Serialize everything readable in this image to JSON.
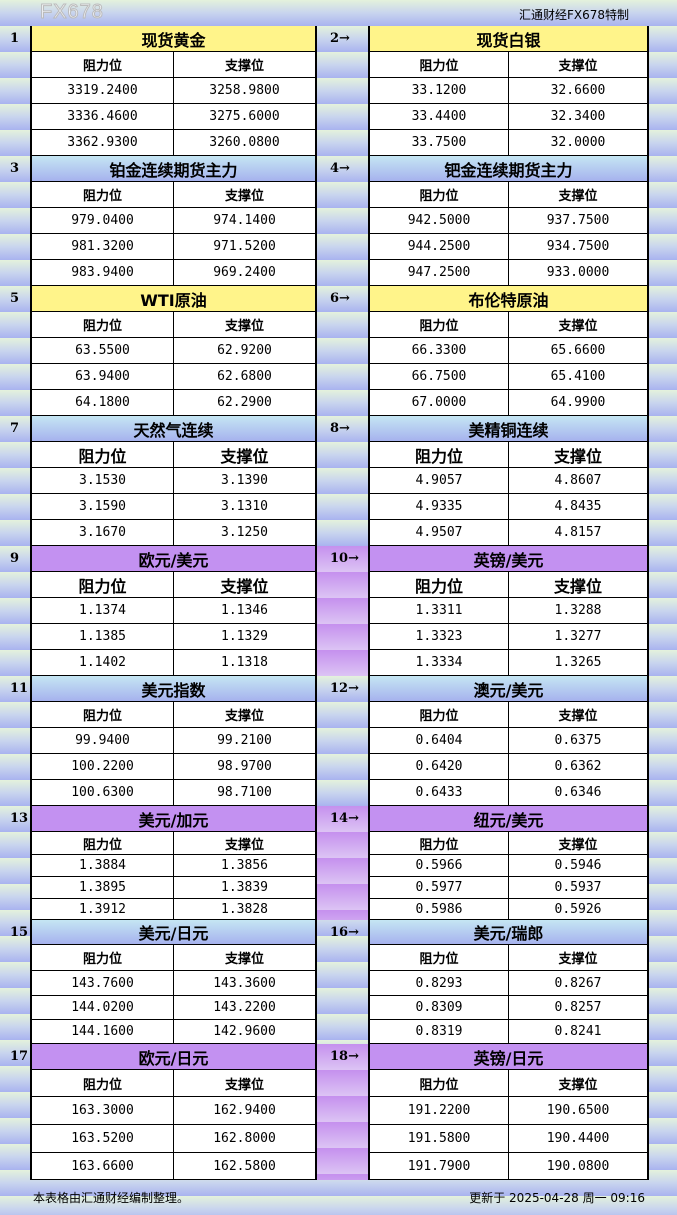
{
  "brand": "汇通财经FX678特制",
  "column_headers": {
    "resistance": "阻力位",
    "support": "支撑位"
  },
  "theme_colors": {
    "yellow": "#fff48a",
    "blue": "#b5cdf0",
    "purple": "#c391f1"
  },
  "sections": [
    {
      "number": "1",
      "theme": "yellow",
      "title": "现货黄金",
      "resistance": [
        "3319.2400",
        "3336.4600",
        "3362.9300"
      ],
      "support": [
        "3258.9800",
        "3275.6000",
        "3260.0800"
      ]
    },
    {
      "number": "2→",
      "theme": "yellow",
      "title": "现货白银",
      "resistance": [
        "33.1200",
        "33.4400",
        "33.7500"
      ],
      "support": [
        "32.6600",
        "32.3400",
        "32.0000"
      ]
    },
    {
      "number": "3",
      "theme": "blue",
      "title": "铂金连续期货主力",
      "resistance": [
        "979.0400",
        "981.3200",
        "983.9400"
      ],
      "support": [
        "974.1400",
        "971.5200",
        "969.2400"
      ]
    },
    {
      "number": "4→",
      "theme": "blue",
      "title": "钯金连续期货主力",
      "resistance": [
        "942.5000",
        "944.2500",
        "947.2500"
      ],
      "support": [
        "937.7500",
        "934.7500",
        "933.0000"
      ]
    },
    {
      "number": "5",
      "theme": "yellow",
      "title": "WTI原油",
      "resistance": [
        "63.5500",
        "63.9400",
        "64.1800"
      ],
      "support": [
        "62.9200",
        "62.6800",
        "62.2900"
      ]
    },
    {
      "number": "6→",
      "theme": "yellow",
      "title": "布伦特原油",
      "resistance": [
        "66.3300",
        "66.7500",
        "67.0000"
      ],
      "support": [
        "65.6600",
        "65.4100",
        "64.9900"
      ]
    },
    {
      "number": "7",
      "theme": "blue",
      "title": "天然气连续",
      "resistance": [
        "3.1530",
        "3.1590",
        "3.1670"
      ],
      "support": [
        "3.1390",
        "3.1310",
        "3.1250"
      ]
    },
    {
      "number": "8→",
      "theme": "blue",
      "title": "美精铜连续",
      "resistance": [
        "4.9057",
        "4.9335",
        "4.9507"
      ],
      "support": [
        "4.8607",
        "4.8435",
        "4.8157"
      ]
    },
    {
      "number": "9",
      "theme": "purple",
      "title": "欧元/美元",
      "resistance": [
        "1.1374",
        "1.1385",
        "1.1402"
      ],
      "support": [
        "1.1346",
        "1.1329",
        "1.1318"
      ]
    },
    {
      "number": "10→",
      "theme": "purple",
      "title": "英镑/美元",
      "resistance": [
        "1.3311",
        "1.3323",
        "1.3334"
      ],
      "support": [
        "1.3288",
        "1.3277",
        "1.3265"
      ]
    },
    {
      "number": "11",
      "theme": "blue",
      "title": "美元指数",
      "resistance": [
        "99.9400",
        "100.2200",
        "100.6300"
      ],
      "support": [
        "99.2100",
        "98.9700",
        "98.7100"
      ]
    },
    {
      "number": "12→",
      "theme": "blue",
      "title": "澳元/美元",
      "resistance": [
        "0.6404",
        "0.6420",
        "0.6433"
      ],
      "support": [
        "0.6375",
        "0.6362",
        "0.6346"
      ]
    },
    {
      "number": "13",
      "theme": "purple",
      "title": "美元/加元",
      "resistance": [
        "1.3884",
        "1.3895",
        "1.3912"
      ],
      "support": [
        "1.3856",
        "1.3839",
        "1.3828"
      ]
    },
    {
      "number": "14→",
      "theme": "purple",
      "title": "纽元/美元",
      "resistance": [
        "0.5966",
        "0.5977",
        "0.5986"
      ],
      "support": [
        "0.5946",
        "0.5937",
        "0.5926"
      ]
    },
    {
      "number": "15",
      "theme": "blue",
      "title": "美元/日元",
      "resistance": [
        "143.7600",
        "144.0200",
        "144.1600"
      ],
      "support": [
        "143.3600",
        "143.2200",
        "142.9600"
      ]
    },
    {
      "number": "16→",
      "theme": "blue",
      "title": "美元/瑞郎",
      "resistance": [
        "0.8293",
        "0.8309",
        "0.8319"
      ],
      "support": [
        "0.8267",
        "0.8257",
        "0.8241"
      ]
    },
    {
      "number": "17",
      "theme": "purple",
      "title": "欧元/日元",
      "resistance": [
        "163.3000",
        "163.5200",
        "163.6600"
      ],
      "support": [
        "162.9400",
        "162.8000",
        "162.5800"
      ]
    },
    {
      "number": "18→",
      "theme": "purple",
      "title": "英镑/日元",
      "resistance": [
        "191.2200",
        "191.5800",
        "191.7900"
      ],
      "support": [
        "190.6500",
        "190.4400",
        "190.0800"
      ]
    }
  ],
  "footer": {
    "note": "本表格由汇通财经编制整理。",
    "updated": "更新于 2025-04-28 周一 09:16"
  },
  "watermark": "FX678"
}
